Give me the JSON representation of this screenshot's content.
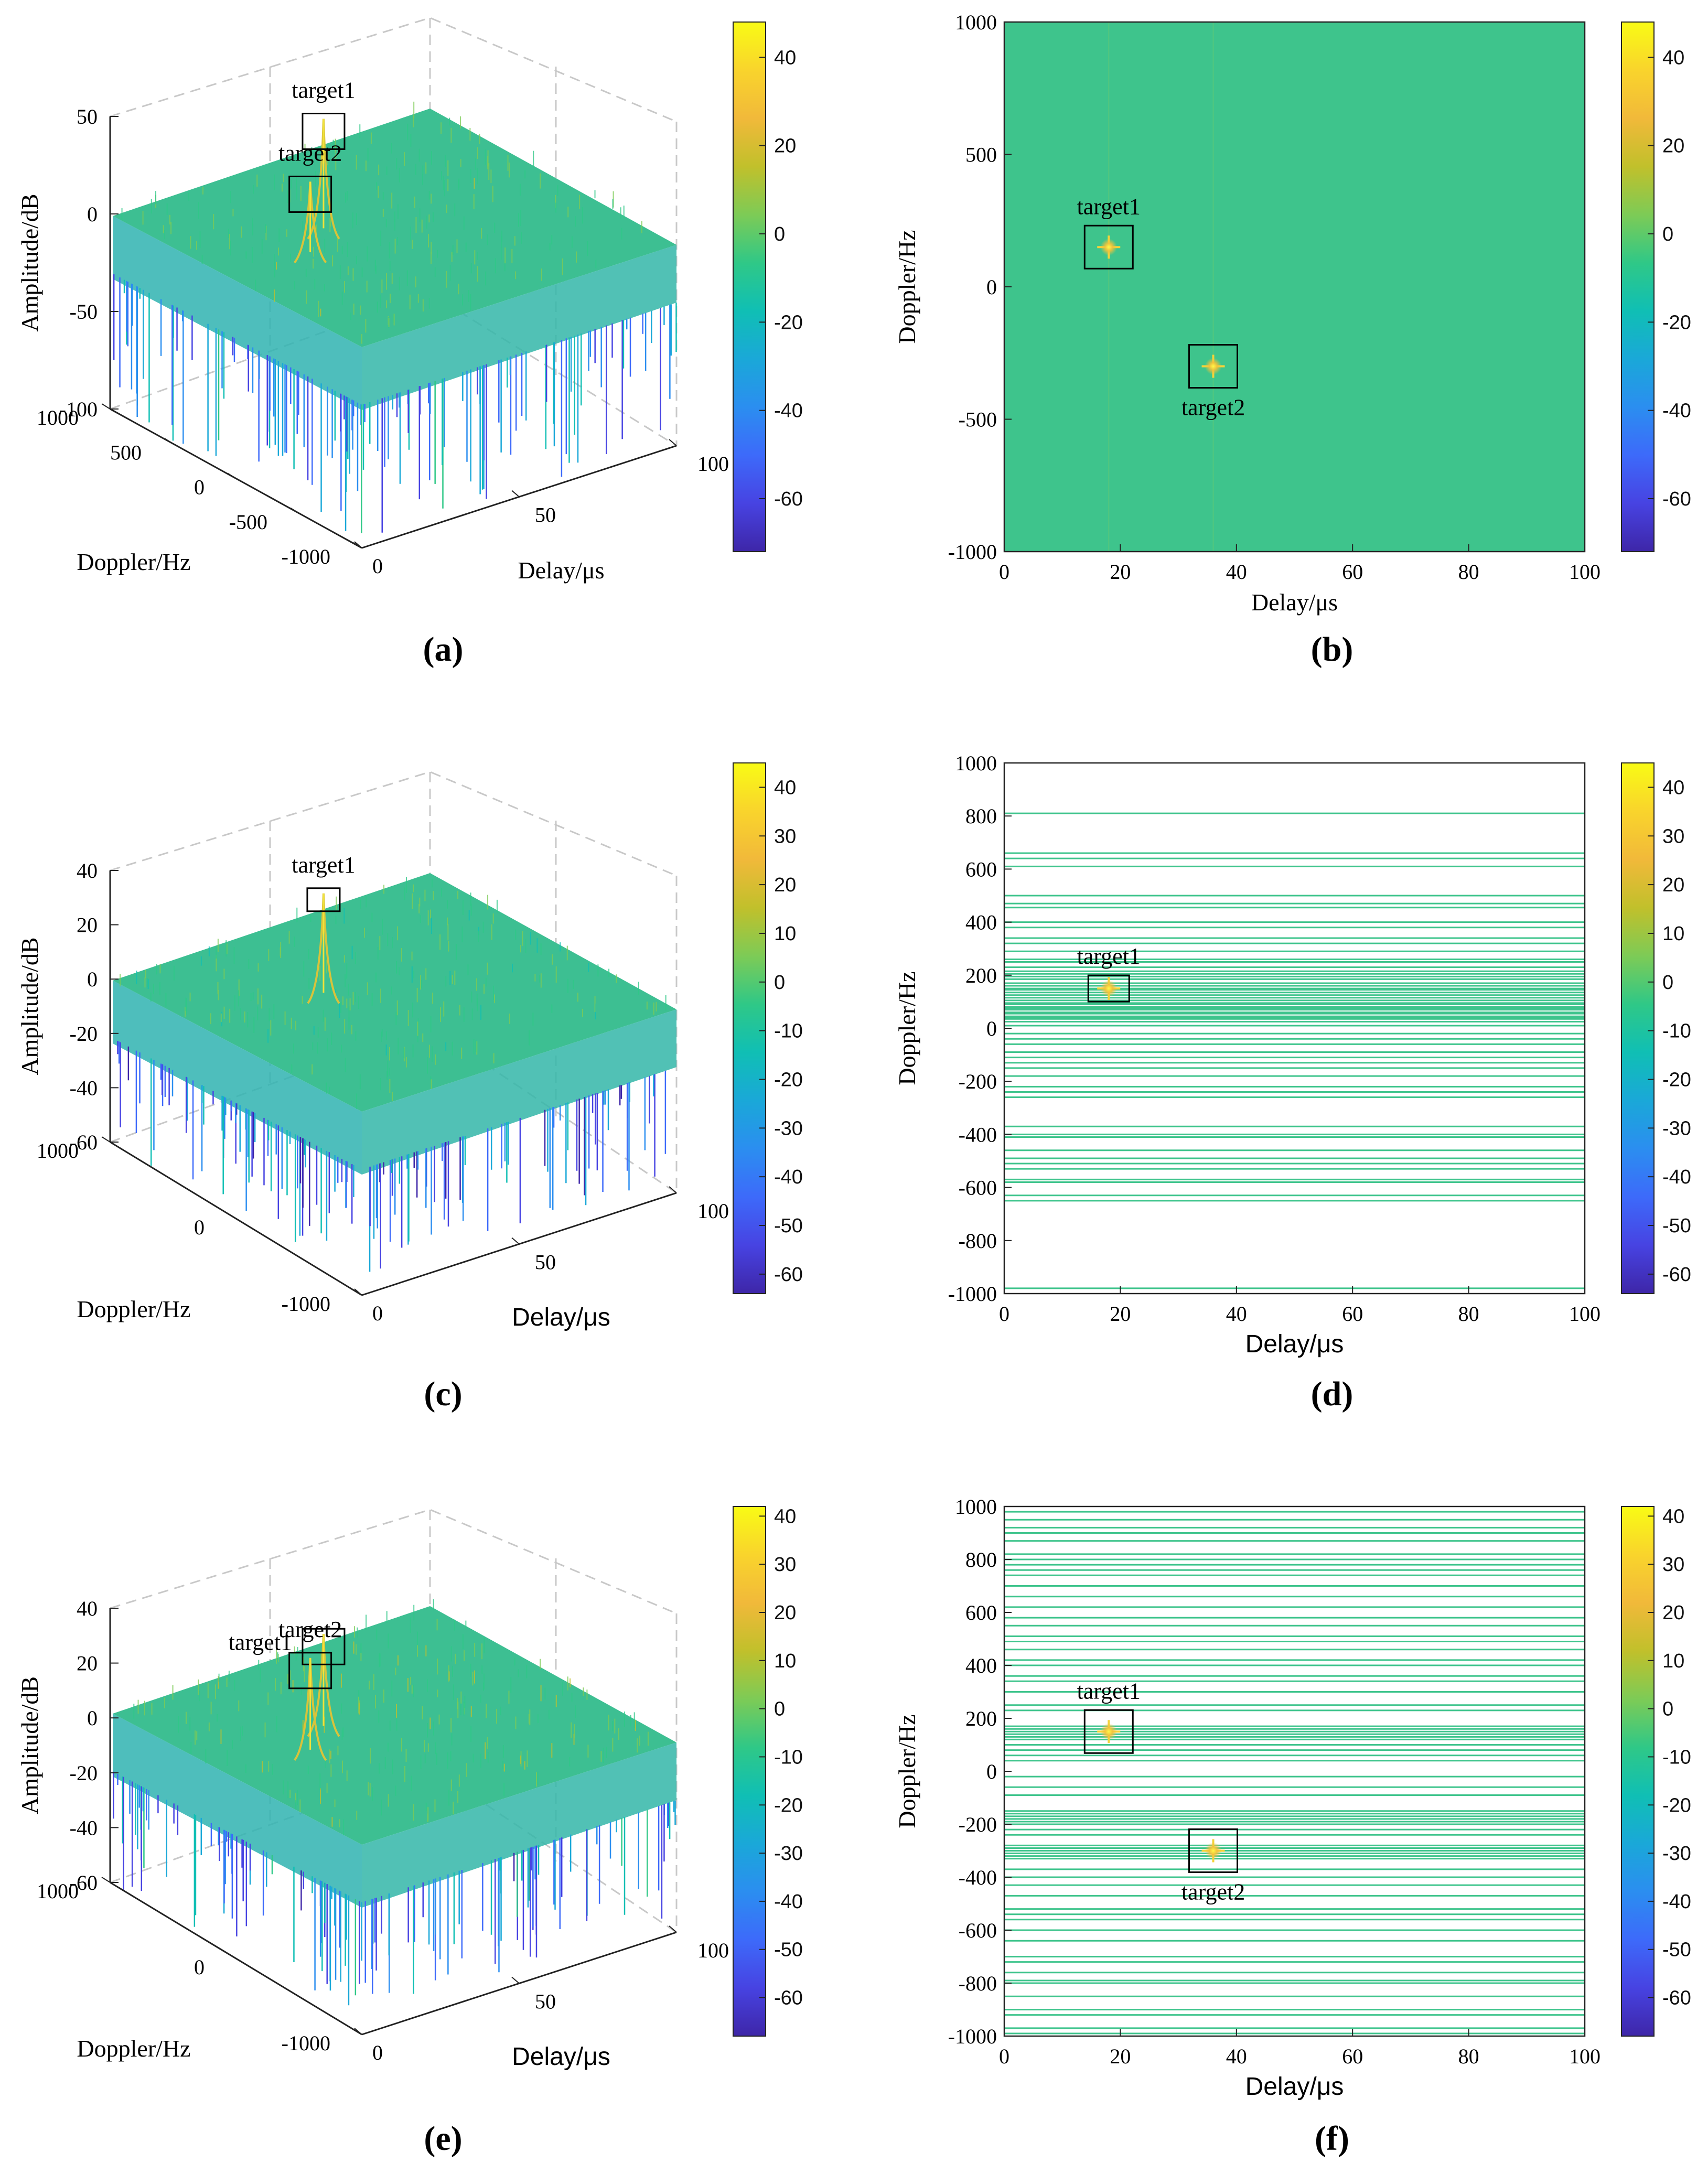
{
  "figure": {
    "panel_labels": [
      "(a)",
      "(b)",
      "(c)",
      "(d)",
      "(e)",
      "(f)"
    ]
  },
  "colormap": [
    "#3e26a8",
    "#4743e2",
    "#3d6afa",
    "#2b8ef0",
    "#1aa8d8",
    "#10bfb4",
    "#2fc887",
    "#7dcb56",
    "#c1c02b",
    "#f1b93a",
    "#f9d42c",
    "#f9fb15"
  ],
  "surface_green": "#3ec48c",
  "chart_data": [
    {
      "id": "a",
      "type": "surface3d",
      "panel_label": "(a)",
      "zlabel": "Amplitude/dB",
      "xlabel": "Delay/μs",
      "ylabel": "Doppler/Hz",
      "zlim": [
        -100,
        50
      ],
      "zticks": [
        "50",
        "0",
        "-50",
        "-100"
      ],
      "yticks": [
        "1000",
        "500",
        "0",
        "-500",
        "-1000"
      ],
      "xticks": [
        "0",
        "50",
        "100"
      ],
      "floor_db": 0,
      "noise_min_db": -60,
      "targets": [
        {
          "name": "target1",
          "delay_us": 18,
          "doppler_hz": 150,
          "peak_db": 40
        },
        {
          "name": "target2",
          "delay_us": 36,
          "doppler_hz": -300,
          "peak_db": 20
        }
      ],
      "colorbar": {
        "range": [
          -72,
          48
        ],
        "ticks": [
          "40",
          "20",
          "0",
          "-20",
          "-40",
          "-60"
        ]
      }
    },
    {
      "id": "b",
      "type": "heatmap",
      "panel_label": "(b)",
      "xlabel": "Delay/μs",
      "ylabel": "Doppler/Hz",
      "xlim": [
        0,
        100
      ],
      "ylim": [
        -1000,
        1000
      ],
      "xticks": [
        "0",
        "20",
        "40",
        "60",
        "80",
        "100"
      ],
      "yticks": [
        "1000",
        "500",
        "0",
        "-500",
        "-1000"
      ],
      "filled": true,
      "lines_hz": [],
      "targets": [
        {
          "name": "target1",
          "delay_us": 18,
          "doppler_hz": 150,
          "label_pos": "above"
        },
        {
          "name": "target2",
          "delay_us": 36,
          "doppler_hz": -300,
          "label_pos": "below"
        }
      ],
      "colorbar": {
        "range": [
          -72,
          48
        ],
        "ticks": [
          "40",
          "20",
          "0",
          "-20",
          "-40",
          "-60"
        ]
      }
    },
    {
      "id": "c",
      "type": "surface3d",
      "panel_label": "(c)",
      "zlabel": "Amplitude/dB",
      "xlabel": "Delay/μs",
      "ylabel": "Doppler/Hz",
      "zlim": [
        -60,
        40
      ],
      "zticks": [
        "40",
        "20",
        "0",
        "-20",
        "-40",
        "-60"
      ],
      "yticks": [
        "1000",
        "0",
        "-1000"
      ],
      "xticks": [
        "0",
        "50",
        "100"
      ],
      "floor_db": 0,
      "noise_min_db": -60,
      "targets": [
        {
          "name": "target1",
          "delay_us": 18,
          "doppler_hz": 150,
          "peak_db": 25
        }
      ],
      "colorbar": {
        "range": [
          -64,
          45
        ],
        "ticks": [
          "40",
          "30",
          "20",
          "10",
          "0",
          "-10",
          "-20",
          "-30",
          "-40",
          "-50",
          "-60"
        ]
      }
    },
    {
      "id": "d",
      "type": "heatmap",
      "panel_label": "(d)",
      "xlabel": "Delay/μs",
      "ylabel": "Doppler/Hz",
      "xlim": [
        0,
        100
      ],
      "ylim": [
        -1000,
        1000
      ],
      "xticks": [
        "0",
        "20",
        "40",
        "60",
        "80",
        "100"
      ],
      "yticks": [
        "1000",
        "800",
        "600",
        "400",
        "200",
        "0",
        "-200",
        "-400",
        "-600",
        "-800",
        "-1000"
      ],
      "filled": false,
      "lines_hz": [
        810,
        660,
        640,
        610,
        500,
        470,
        455,
        400,
        380,
        340,
        320,
        290,
        260,
        250,
        230,
        215,
        205,
        195,
        185,
        170,
        160,
        150,
        145,
        135,
        125,
        115,
        105,
        95,
        90,
        80,
        75,
        70,
        60,
        55,
        45,
        40,
        35,
        25,
        10,
        -20,
        -40,
        -60,
        -90,
        -110,
        -130,
        -150,
        -180,
        -220,
        -240,
        -260,
        -370,
        -400,
        -410,
        -460,
        -490,
        -510,
        -530,
        -570,
        -580,
        -630,
        -650,
        -980
      ],
      "targets": [
        {
          "name": "target1",
          "delay_us": 18,
          "doppler_hz": 150,
          "label_pos": "above"
        }
      ],
      "colorbar": {
        "range": [
          -64,
          45
        ],
        "ticks": [
          "40",
          "30",
          "20",
          "10",
          "0",
          "-10",
          "-20",
          "-30",
          "-40",
          "-50",
          "-60"
        ]
      }
    },
    {
      "id": "e",
      "type": "surface3d",
      "panel_label": "(e)",
      "zlabel": "Amplitude/dB",
      "xlabel": "Delay/μs",
      "ylabel": "Doppler/Hz",
      "zlim": [
        -60,
        40
      ],
      "zticks": [
        "40",
        "20",
        "0",
        "-20",
        "-40",
        "-60"
      ],
      "yticks": [
        "1000",
        "0",
        "-1000"
      ],
      "xticks": [
        "0",
        "50",
        "100"
      ],
      "floor_db": 0,
      "noise_min_db": -60,
      "targets": [
        {
          "name": "target1",
          "delay_us": 18,
          "doppler_hz": 150,
          "peak_db": 22,
          "label_side": "left"
        },
        {
          "name": "target2",
          "delay_us": 36,
          "doppler_hz": -300,
          "peak_db": 22,
          "label_side": "above"
        }
      ],
      "colorbar": {
        "range": [
          -68,
          42
        ],
        "ticks": [
          "40",
          "30",
          "20",
          "10",
          "0",
          "-10",
          "-20",
          "-30",
          "-40",
          "-50",
          "-60"
        ]
      }
    },
    {
      "id": "f",
      "type": "heatmap",
      "panel_label": "(f)",
      "xlabel": "Delay/μs",
      "ylabel": "Doppler/Hz",
      "xlim": [
        0,
        100
      ],
      "ylim": [
        -1000,
        1000
      ],
      "xticks": [
        "0",
        "20",
        "40",
        "60",
        "80",
        "100"
      ],
      "yticks": [
        "1000",
        "800",
        "600",
        "400",
        "200",
        "0",
        "-200",
        "-400",
        "-600",
        "-800",
        "-1000"
      ],
      "filled": false,
      "lines_hz": [
        980,
        950,
        920,
        900,
        870,
        820,
        800,
        780,
        760,
        740,
        700,
        660,
        620,
        580,
        550,
        510,
        490,
        460,
        420,
        400,
        360,
        340,
        300,
        250,
        230,
        170,
        160,
        150,
        140,
        130,
        120,
        100,
        80,
        60,
        40,
        -20,
        -60,
        -90,
        -150,
        -160,
        -170,
        -180,
        -190,
        -200,
        -220,
        -240,
        -280,
        -290,
        -300,
        -310,
        -320,
        -330,
        -370,
        -400,
        -430,
        -470,
        -520,
        -540,
        -560,
        -600,
        -640,
        -700,
        -720,
        -760,
        -790,
        -800,
        -850,
        -900,
        -920,
        -970,
        -990
      ],
      "targets": [
        {
          "name": "target1",
          "delay_us": 18,
          "doppler_hz": 150,
          "label_pos": "above"
        },
        {
          "name": "target2",
          "delay_us": 36,
          "doppler_hz": -300,
          "label_pos": "below"
        }
      ],
      "colorbar": {
        "range": [
          -68,
          42
        ],
        "ticks": [
          "40",
          "30",
          "20",
          "10",
          "0",
          "-10",
          "-20",
          "-30",
          "-40",
          "-50",
          "-60"
        ]
      }
    }
  ]
}
